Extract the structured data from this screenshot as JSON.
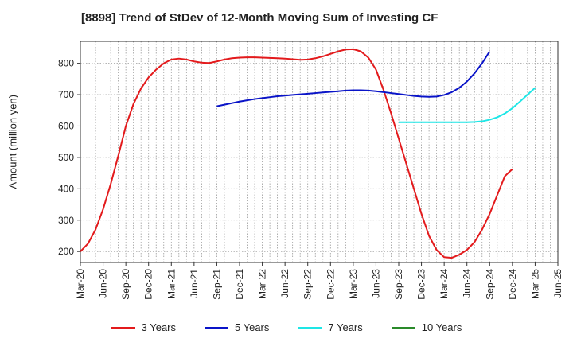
{
  "title": "[8898]  Trend of StDev of 12-Month Moving Sum of Investing CF",
  "chart_data": {
    "type": "line",
    "ylabel": "Amount (million yen)",
    "xlabel": "",
    "ylim": [
      165,
      870
    ],
    "yticks": [
      200,
      300,
      400,
      500,
      600,
      700,
      800
    ],
    "grid": true,
    "legend_position": "bottom",
    "x_tick_labels": [
      "Mar-20",
      "Jun-20",
      "Sep-20",
      "Dec-20",
      "Mar-21",
      "Jun-21",
      "Sep-21",
      "Dec-21",
      "Mar-22",
      "Jun-22",
      "Sep-22",
      "Dec-22",
      "Mar-23",
      "Jun-23",
      "Sep-23",
      "Dec-23",
      "Mar-24",
      "Jun-24",
      "Sep-24",
      "Dec-24",
      "Mar-25",
      "Jun-25"
    ],
    "series": [
      {
        "name": "3 Years",
        "color": "#e31a1c",
        "start_index": 0,
        "values": [
          200,
          225,
          270,
          335,
          415,
          505,
          600,
          670,
          720,
          755,
          780,
          800,
          812,
          815,
          812,
          806,
          802,
          801,
          806,
          812,
          816,
          818,
          819,
          819,
          818,
          817,
          816,
          815,
          813,
          811,
          812,
          816,
          822,
          830,
          838,
          844,
          845,
          838,
          818,
          780,
          715,
          640,
          560,
          480,
          400,
          320,
          250,
          205,
          182,
          180,
          190,
          205,
          230,
          270,
          320,
          380,
          440,
          463
        ]
      },
      {
        "name": "5 Years",
        "color": "#0a14c8",
        "start_index": 18,
        "values": [
          663,
          668,
          673,
          678,
          682,
          686,
          689,
          692,
          695,
          697,
          699,
          701,
          703,
          705,
          707,
          709,
          711,
          713,
          714,
          714,
          713,
          711,
          708,
          705,
          702,
          699,
          696,
          694,
          693,
          694,
          699,
          708,
          722,
          742,
          768,
          800,
          838
        ]
      },
      {
        "name": "7 Years",
        "color": "#1ee6e6",
        "start_index": 42,
        "values": [
          612,
          612,
          612,
          612,
          612,
          612,
          612,
          612,
          612,
          612,
          613,
          615,
          620,
          628,
          640,
          657,
          678,
          700,
          722
        ]
      },
      {
        "name": "10 Years",
        "color": "#2a8a2a",
        "start_index": 0,
        "values": []
      }
    ]
  }
}
